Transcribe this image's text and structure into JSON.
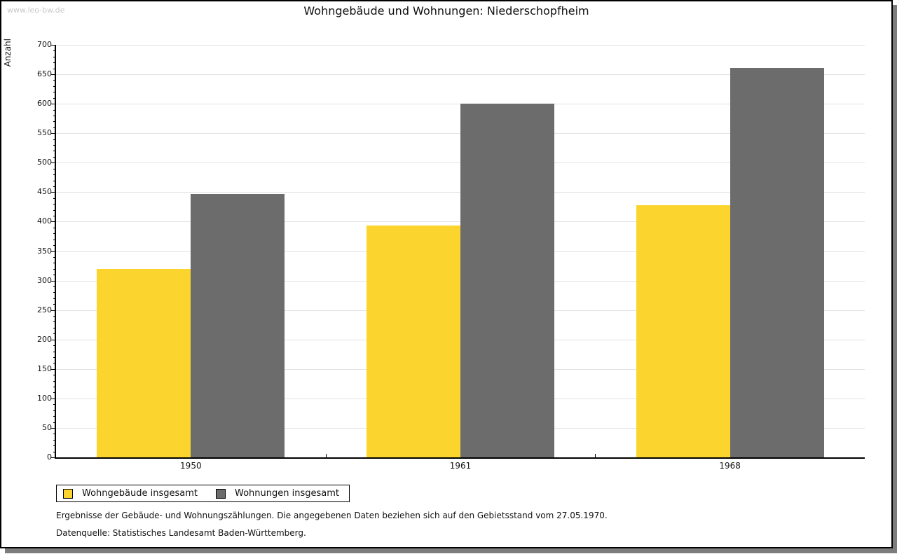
{
  "watermark": "www.leo-bw.de",
  "title": "Wohngebäude und Wohnungen: Niederschopfheim",
  "footnotes": {
    "line1": "Ergebnisse der Gebäude- und Wohnungszählungen. Die angegebenen Daten beziehen sich auf den Gebietsstand vom 27.05.1970.",
    "line2": "Datenquelle: Statistisches Landesamt Baden-Württemberg."
  },
  "chart_data": {
    "type": "bar",
    "title": "Wohngebäude und Wohnungen: Niederschopfheim",
    "xlabel": "",
    "ylabel": "Anzahl",
    "categories": [
      "1950",
      "1961",
      "1968"
    ],
    "series": [
      {
        "name": "Wohngebäude insgesamt",
        "color": "#fcd42e",
        "values": [
          320,
          393,
          428
        ]
      },
      {
        "name": "Wohnungen insgesamt",
        "color": "#6c6c6c",
        "values": [
          447,
          600,
          661
        ]
      }
    ],
    "ylim": [
      0,
      700
    ],
    "ytick_step": 50,
    "yminor_step": 10,
    "grid": true,
    "legend_position": "bottom-left"
  },
  "colors": {
    "grid": "#e2e2e2",
    "axis": "#000000",
    "watermark": "#c9c9c9",
    "shadow": "#7d7d7d",
    "background": "#ffffff"
  }
}
